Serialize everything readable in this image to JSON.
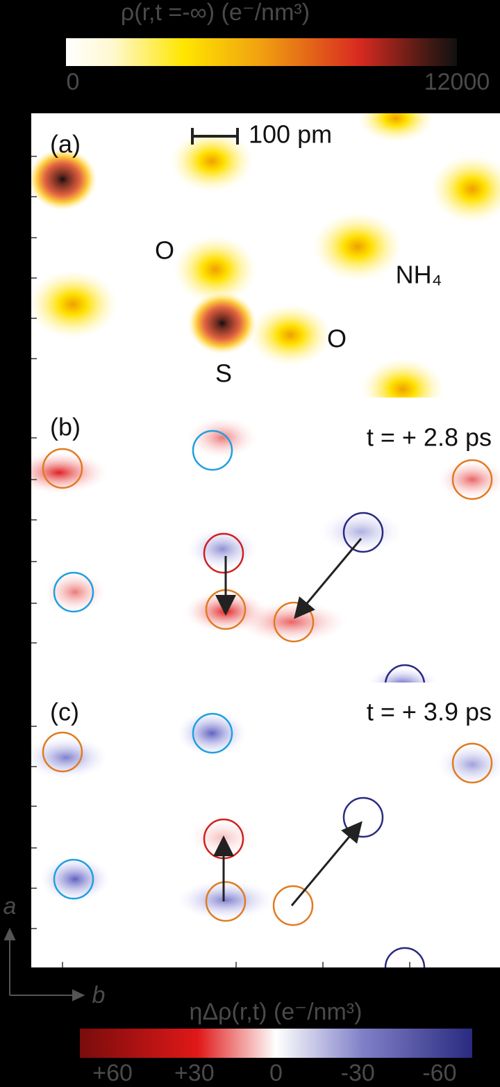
{
  "colorbar_top": {
    "label": "ρ(r,t =-∞)  (e⁻/nm³)",
    "lim": [
      0,
      12000
    ],
    "ticks": [
      0,
      12000
    ]
  },
  "panels": [
    {
      "label": "(a)",
      "scale_bar": "100 pm",
      "atoms": [
        "O",
        "NH₄",
        "O",
        "S"
      ]
    },
    {
      "label": "(b)",
      "time": "t = + 2.8 ps"
    },
    {
      "label": "(c)",
      "time": "t = + 3.9 ps"
    }
  ],
  "axes": {
    "a": "a",
    "b": "b"
  },
  "colorbar_bottom": {
    "label": "ηΔρ(r,t)  (e⁻/nm³)",
    "lim": [
      72,
      -72
    ],
    "ticks": [
      {
        "value": 60,
        "label": "+60"
      },
      {
        "value": 30,
        "label": "+30"
      },
      0,
      -30,
      -60
    ]
  }
}
